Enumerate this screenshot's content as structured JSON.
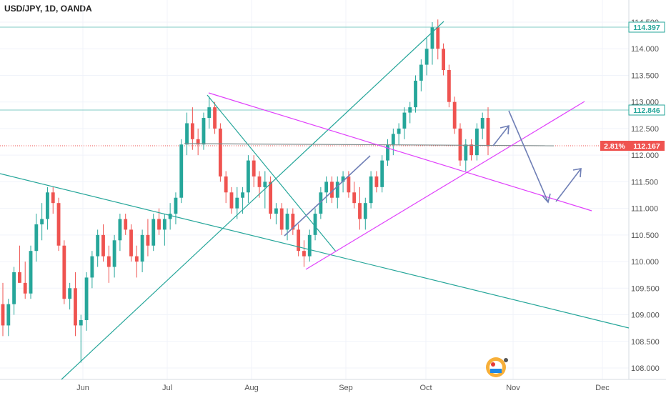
{
  "header": {
    "symbol": "USD/JPY, 1D, OANDA"
  },
  "colors": {
    "up": "#26a69a",
    "down": "#ef5350",
    "trend_green": "#26a69a",
    "channel_pink": "#e040fb",
    "arrow": "#6f7fb6",
    "hline": "#80cbc4",
    "price_tag": "#ef5350"
  },
  "icons": {
    "watermark": "tradingview-badge-icon"
  },
  "chart_data": {
    "type": "candlestick",
    "ylim": [
      107.8,
      114.6
    ],
    "y_ticks": [
      "108.000",
      "108.500",
      "109.000",
      "109.500",
      "110.000",
      "110.500",
      "111.000",
      "111.500",
      "112.000",
      "112.500",
      "113.000",
      "113.500",
      "114.000",
      "114.500"
    ],
    "x_ticks": [
      "Jun",
      "Jul",
      "Aug",
      "Sep",
      "Oct",
      "Nov",
      "Dec"
    ],
    "price_labels": [
      {
        "text": "114.397",
        "value": 114.397,
        "style": "outline"
      },
      {
        "text": "112.846",
        "value": 112.846,
        "style": "outline"
      },
      {
        "text": "112.167",
        "value": 112.167,
        "style": "filled"
      }
    ],
    "change_label": "2.81%",
    "candles": [
      [
        109.2,
        109.6,
        108.6,
        108.8
      ],
      [
        108.8,
        109.3,
        108.6,
        109.2
      ],
      [
        109.2,
        109.9,
        109.0,
        109.8
      ],
      [
        109.8,
        110.3,
        109.6,
        109.6
      ],
      [
        109.6,
        110.0,
        109.3,
        109.4
      ],
      [
        109.4,
        110.3,
        109.3,
        110.2
      ],
      [
        110.2,
        110.9,
        110.0,
        110.7
      ],
      [
        110.7,
        111.1,
        110.4,
        110.8
      ],
      [
        110.8,
        111.4,
        110.6,
        111.3
      ],
      [
        111.3,
        111.4,
        110.9,
        111.1
      ],
      [
        111.1,
        111.2,
        110.2,
        110.3
      ],
      [
        110.3,
        110.4,
        109.2,
        109.3
      ],
      [
        109.3,
        109.6,
        109.1,
        109.5
      ],
      [
        109.5,
        109.8,
        108.6,
        108.8
      ],
      [
        108.8,
        109.0,
        108.1,
        108.9
      ],
      [
        108.9,
        109.8,
        108.7,
        109.7
      ],
      [
        109.7,
        110.2,
        109.5,
        110.1
      ],
      [
        110.1,
        110.6,
        109.9,
        110.5
      ],
      [
        110.5,
        110.7,
        110.0,
        110.1
      ],
      [
        110.1,
        110.3,
        109.6,
        109.9
      ],
      [
        109.9,
        110.5,
        109.7,
        110.4
      ],
      [
        110.4,
        110.9,
        110.2,
        110.8
      ],
      [
        110.8,
        110.9,
        110.5,
        110.6
      ],
      [
        110.6,
        110.7,
        110.0,
        110.1
      ],
      [
        110.1,
        110.3,
        109.7,
        110.0
      ],
      [
        110.0,
        110.6,
        109.8,
        110.5
      ],
      [
        110.5,
        110.8,
        110.1,
        110.3
      ],
      [
        110.3,
        110.9,
        110.2,
        110.8
      ],
      [
        110.8,
        111.0,
        110.5,
        110.6
      ],
      [
        110.6,
        110.9,
        110.3,
        110.8
      ],
      [
        110.8,
        111.1,
        110.6,
        110.9
      ],
      [
        110.9,
        111.3,
        110.7,
        111.2
      ],
      [
        111.2,
        112.3,
        111.1,
        112.2
      ],
      [
        112.2,
        112.8,
        112.0,
        112.6
      ],
      [
        112.6,
        112.9,
        112.1,
        112.3
      ],
      [
        112.3,
        112.5,
        112.0,
        112.2
      ],
      [
        112.2,
        112.8,
        112.1,
        112.7
      ],
      [
        112.7,
        113.1,
        112.5,
        112.9
      ],
      [
        112.9,
        113.0,
        112.4,
        112.5
      ],
      [
        112.5,
        112.6,
        111.5,
        111.6
      ],
      [
        111.6,
        111.7,
        111.1,
        111.3
      ],
      [
        111.3,
        111.4,
        110.9,
        111.0
      ],
      [
        111.0,
        111.4,
        110.8,
        111.2
      ],
      [
        111.2,
        111.4,
        110.9,
        111.3
      ],
      [
        111.3,
        112.0,
        111.1,
        111.9
      ],
      [
        111.9,
        112.0,
        111.4,
        111.6
      ],
      [
        111.6,
        111.7,
        111.2,
        111.4
      ],
      [
        111.4,
        111.7,
        111.0,
        111.5
      ],
      [
        111.5,
        111.6,
        110.8,
        110.9
      ],
      [
        110.9,
        111.1,
        110.7,
        111.0
      ],
      [
        111.0,
        111.1,
        110.5,
        110.6
      ],
      [
        110.6,
        111.0,
        110.4,
        110.9
      ],
      [
        110.9,
        111.0,
        110.5,
        110.6
      ],
      [
        110.6,
        110.7,
        110.1,
        110.2
      ],
      [
        110.2,
        110.4,
        109.9,
        110.1
      ],
      [
        110.1,
        110.6,
        110.0,
        110.5
      ],
      [
        110.5,
        111.0,
        110.4,
        110.9
      ],
      [
        110.9,
        111.4,
        110.8,
        111.3
      ],
      [
        111.3,
        111.6,
        111.1,
        111.5
      ],
      [
        111.5,
        111.6,
        111.1,
        111.2
      ],
      [
        111.2,
        111.6,
        111.0,
        111.5
      ],
      [
        111.5,
        111.7,
        111.3,
        111.6
      ],
      [
        111.6,
        111.7,
        111.2,
        111.3
      ],
      [
        111.3,
        111.5,
        111.0,
        111.1
      ],
      [
        111.1,
        111.4,
        110.6,
        110.8
      ],
      [
        110.8,
        111.2,
        110.6,
        111.1
      ],
      [
        111.1,
        111.7,
        111.0,
        111.6
      ],
      [
        111.6,
        111.7,
        111.3,
        111.4
      ],
      [
        111.4,
        112.0,
        111.3,
        111.9
      ],
      [
        111.9,
        112.3,
        111.8,
        112.2
      ],
      [
        112.2,
        112.5,
        112.0,
        112.4
      ],
      [
        112.4,
        112.6,
        112.2,
        112.5
      ],
      [
        112.5,
        112.9,
        112.3,
        112.8
      ],
      [
        112.8,
        113.0,
        112.6,
        112.9
      ],
      [
        112.9,
        113.5,
        112.8,
        113.4
      ],
      [
        113.4,
        113.8,
        113.2,
        113.7
      ],
      [
        113.7,
        114.2,
        113.5,
        114.0
      ],
      [
        114.0,
        114.5,
        113.7,
        114.4
      ],
      [
        114.4,
        114.55,
        113.8,
        114.0
      ],
      [
        114.0,
        114.1,
        113.5,
        113.6
      ],
      [
        113.6,
        113.7,
        112.9,
        113.0
      ],
      [
        113.0,
        113.1,
        112.4,
        112.5
      ],
      [
        112.5,
        112.6,
        111.8,
        111.9
      ],
      [
        111.9,
        112.3,
        111.7,
        112.2
      ],
      [
        112.2,
        112.3,
        111.9,
        112.0
      ],
      [
        112.0,
        112.6,
        111.9,
        112.5
      ],
      [
        112.5,
        112.8,
        112.3,
        112.7
      ],
      [
        112.7,
        112.9,
        112.0,
        112.167
      ]
    ]
  }
}
